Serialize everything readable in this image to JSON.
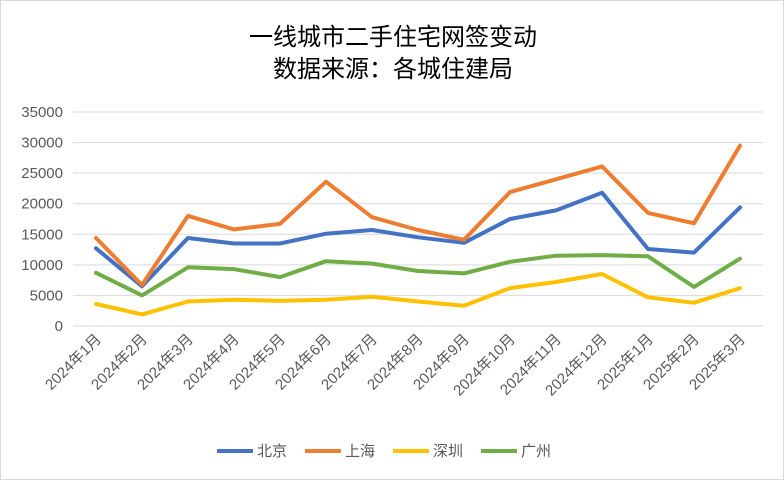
{
  "chart_data": {
    "type": "line",
    "title_lines": [
      "一线城市二手住宅网签变动",
      "数据来源：各城住建局"
    ],
    "xlabel": "",
    "ylabel": "",
    "ylim": [
      0,
      35000
    ],
    "yticks": [
      0,
      5000,
      10000,
      15000,
      20000,
      25000,
      30000,
      35000
    ],
    "grid": "horizontal",
    "legend_position": "bottom",
    "categories": [
      "2024年1月",
      "2024年2月",
      "2024年3月",
      "2024年4月",
      "2024年5月",
      "2024年6月",
      "2024年7月",
      "2024年8月",
      "2024年9月",
      "2024年10月",
      "2024年11月",
      "2024年12月",
      "2025年1月",
      "2025年2月",
      "2025年3月"
    ],
    "series": [
      {
        "name": "北京",
        "color": "#4472c4",
        "values": [
          12700,
          6500,
          14400,
          13500,
          13500,
          15100,
          15700,
          14500,
          13600,
          17500,
          18900,
          21800,
          12600,
          12000,
          19400
        ]
      },
      {
        "name": "上海",
        "color": "#ed7d31",
        "values": [
          14400,
          6700,
          18000,
          15800,
          16700,
          23600,
          17800,
          15700,
          14100,
          21900,
          24000,
          26100,
          18500,
          16800,
          29500
        ]
      },
      {
        "name": "深圳",
        "color": "#ffc000",
        "values": [
          3600,
          1900,
          4000,
          4300,
          4100,
          4300,
          4800,
          4000,
          3300,
          6200,
          7200,
          8500,
          4700,
          3800,
          6200
        ]
      },
      {
        "name": "广州",
        "color": "#70ad47",
        "values": [
          8700,
          5000,
          9600,
          9300,
          8000,
          10600,
          10200,
          9000,
          8600,
          10500,
          11500,
          11600,
          11400,
          6400,
          11000
        ]
      }
    ]
  }
}
